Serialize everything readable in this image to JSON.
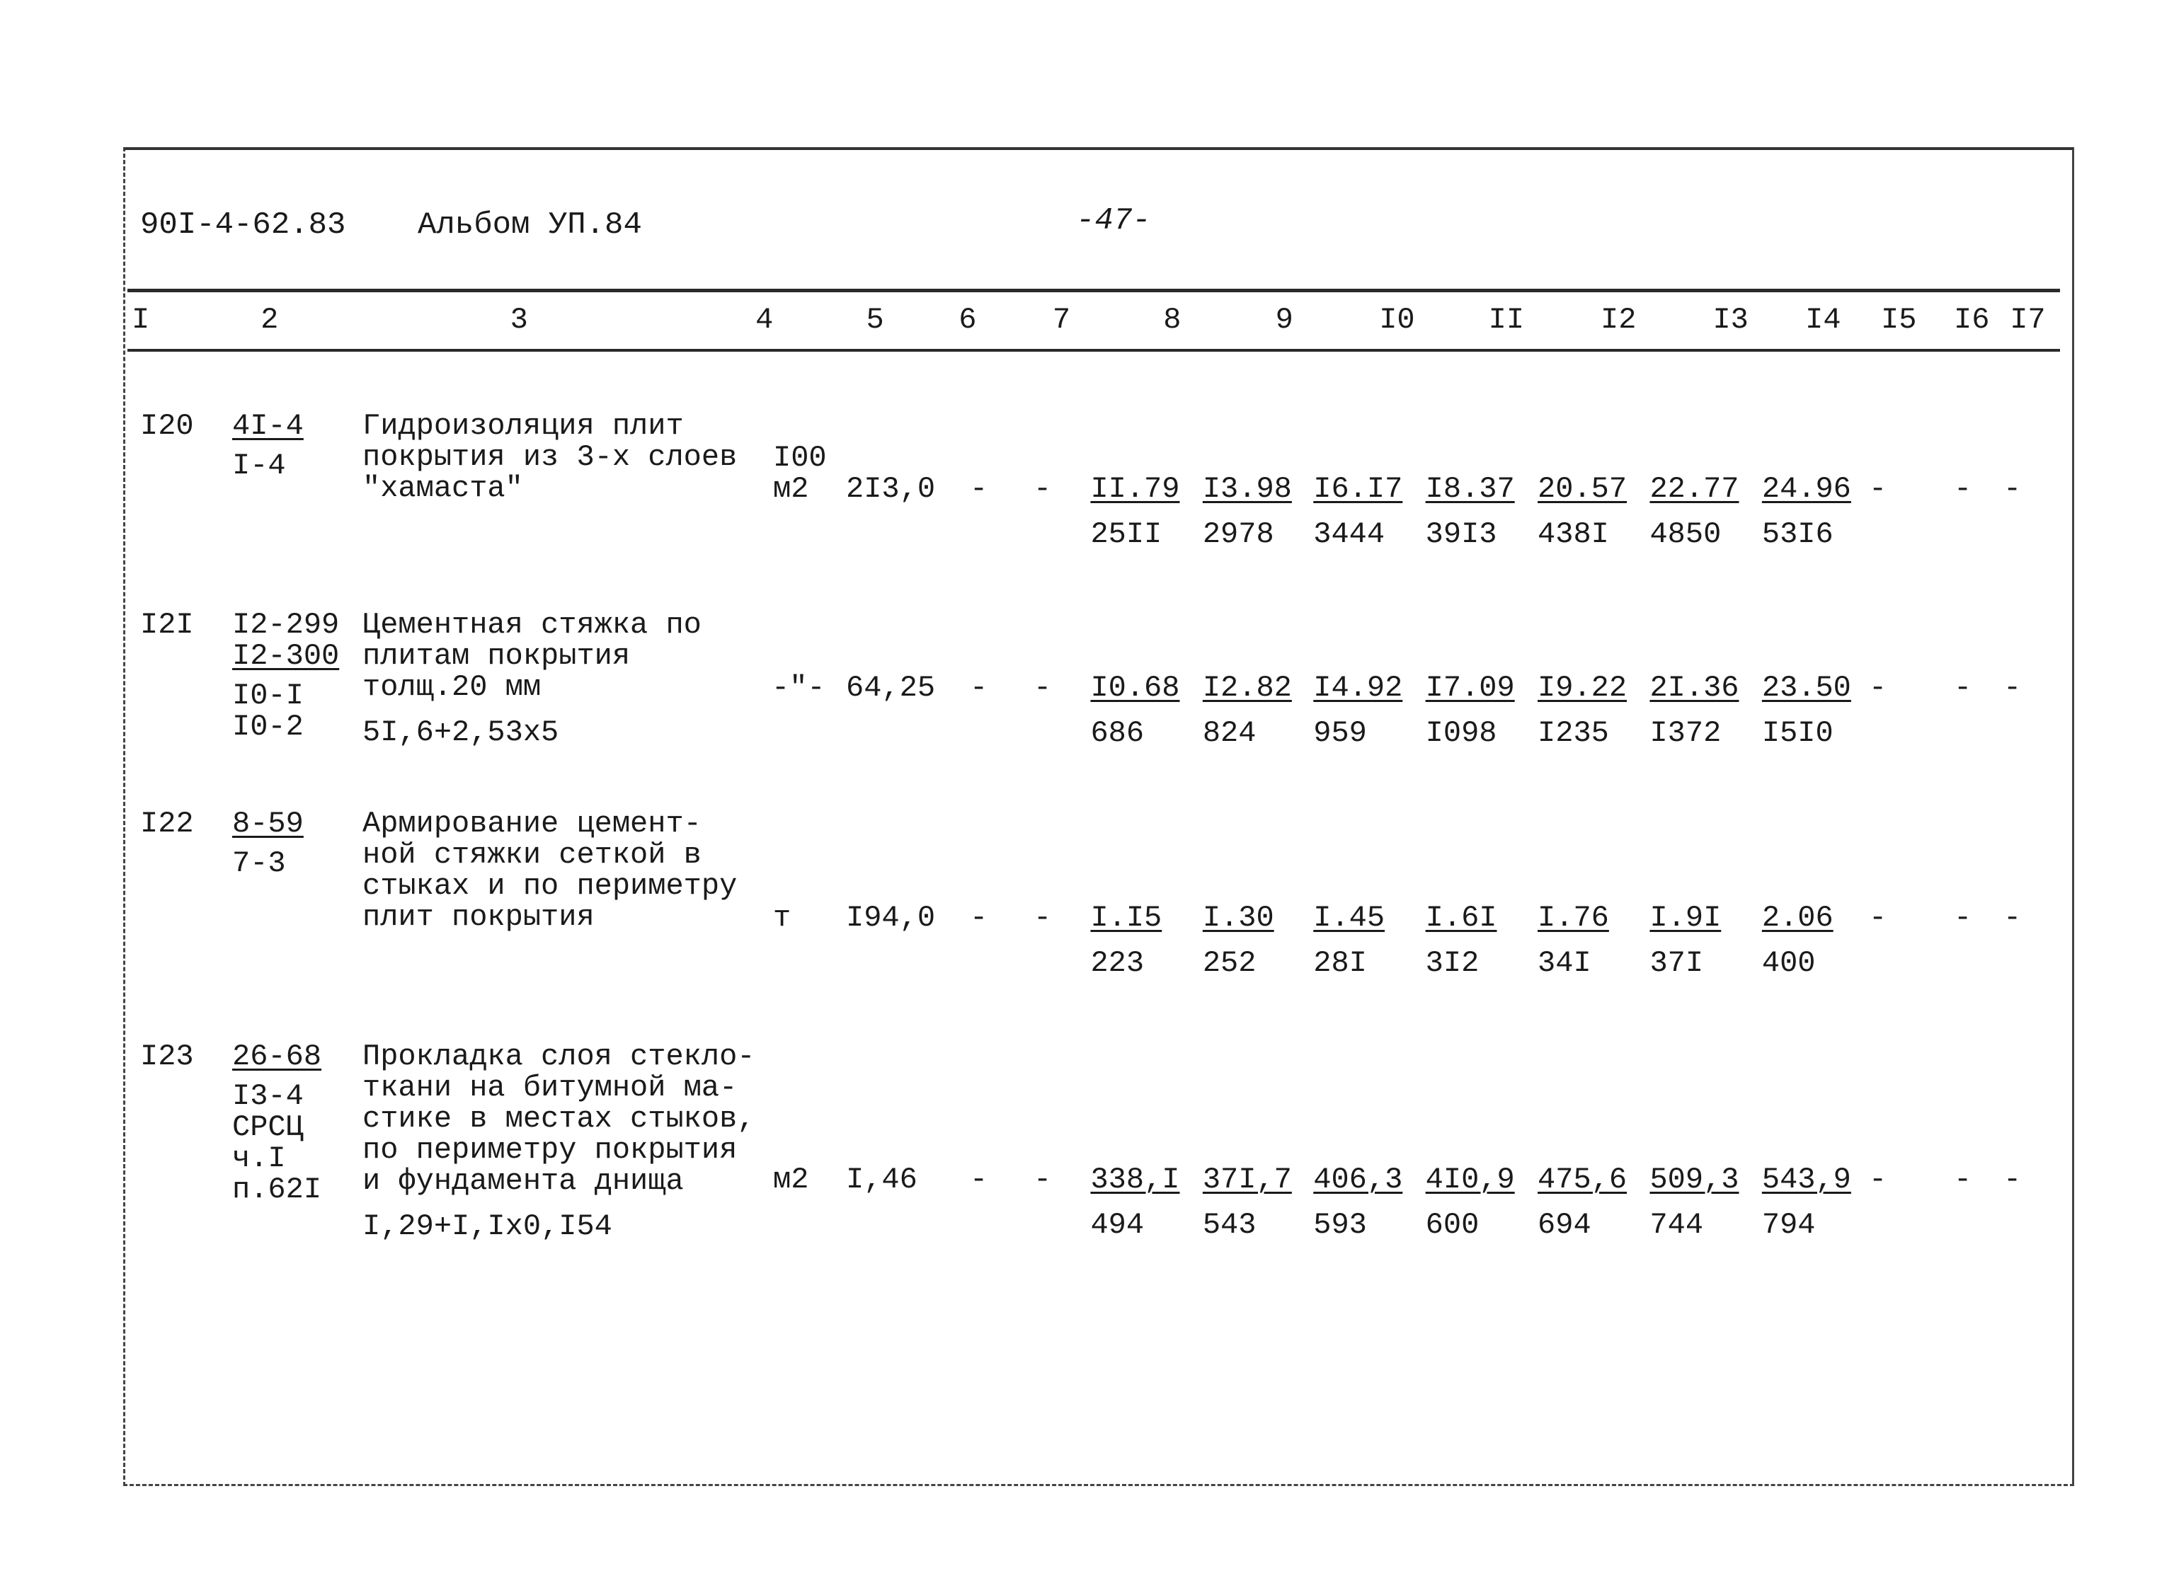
{
  "header": {
    "code": "90I-4-62.83",
    "album": "Альбом УП.84",
    "page": "-47-"
  },
  "columns": [
    "I",
    "2",
    "3",
    "4",
    "5",
    "6",
    "7",
    "8",
    "9",
    "I0",
    "II",
    "I2",
    "I3",
    "I4",
    "I5",
    "I6",
    "I7"
  ],
  "rows": [
    {
      "num": "I20",
      "refs": [
        {
          "text": "4I-4",
          "underline": true
        },
        {
          "text": "I-4",
          "underline": false
        }
      ],
      "description": [
        "Гидроизоляция плит",
        "покрытия из 3-х слоев",
        "\"хамаста\""
      ],
      "formula": "",
      "unit": [
        "I00",
        "м2"
      ],
      "col5": "2I3,0",
      "col6": "-",
      "col7": "-",
      "prices": [
        "II.79",
        "I3.98",
        "I6.I7",
        "I8.37",
        "20.57",
        "22.77",
        "24.96"
      ],
      "totals": [
        "25II",
        "2978",
        "3444",
        "39I3",
        "438I",
        "4850",
        "53I6"
      ],
      "col15": "-",
      "col16": "-",
      "col17": "-"
    },
    {
      "num": "I2I",
      "refs": [
        {
          "text": "I2-299",
          "underline": false
        },
        {
          "text": "I2-300",
          "underline": true
        },
        {
          "text": "I0-I",
          "underline": false
        },
        {
          "text": "I0-2",
          "underline": false
        }
      ],
      "description": [
        "Цементная стяжка по",
        "плитам покрытия",
        "толщ.20 мм"
      ],
      "formula": "5I,6+2,53x5",
      "unit": [
        "-\"-"
      ],
      "col5": "64,25",
      "col6": "-",
      "col7": "-",
      "prices": [
        "I0.68",
        "I2.82",
        "I4.92",
        "I7.09",
        "I9.22",
        "2I.36",
        "23.50"
      ],
      "totals": [
        "686",
        "824",
        "959",
        "I098",
        "I235",
        "I372",
        "I5I0"
      ],
      "col15": "-",
      "col16": "-",
      "col17": "-"
    },
    {
      "num": "I22",
      "refs": [
        {
          "text": "8-59",
          "underline": true
        },
        {
          "text": "7-3",
          "underline": false
        }
      ],
      "description": [
        "Армирование цемент-",
        "ной стяжки сеткой в",
        "стыках и по периметру",
        "плит покрытия"
      ],
      "formula": "",
      "unit": [
        "т"
      ],
      "col5": "I94,0",
      "col6": "-",
      "col7": "-",
      "prices": [
        "I.I5",
        "I.30",
        "I.45",
        "I.6I",
        "I.76",
        "I.9I",
        "2.06"
      ],
      "totals": [
        "223",
        "252",
        "28I",
        "3I2",
        "34I",
        "37I",
        "400"
      ],
      "col15": "-",
      "col16": "-",
      "col17": "-"
    },
    {
      "num": "I23",
      "refs": [
        {
          "text": "26-68",
          "underline": true
        },
        {
          "text": "I3-4",
          "underline": false
        },
        {
          "text": "СРСЦ",
          "underline": false
        },
        {
          "text": "ч.I",
          "underline": false
        },
        {
          "text": "п.62I",
          "underline": false
        }
      ],
      "description": [
        "Прокладка слоя стекло-",
        "ткани на битумной ма-",
        "стике в местах стыков,",
        "по периметру покрытия",
        "и фундамента днища"
      ],
      "formula": "I,29+I,Ix0,I54",
      "unit": [
        "м2"
      ],
      "col5": "I,46",
      "col6": "-",
      "col7": "-",
      "prices": [
        "338,I",
        "37I,7",
        "406,3",
        "4I0,9",
        "475,6",
        "509,3",
        "543,9"
      ],
      "totals": [
        "494",
        "543",
        "593",
        "600",
        "694",
        "744",
        "794"
      ],
      "col15": "-",
      "col16": "-",
      "col17": "-"
    }
  ]
}
